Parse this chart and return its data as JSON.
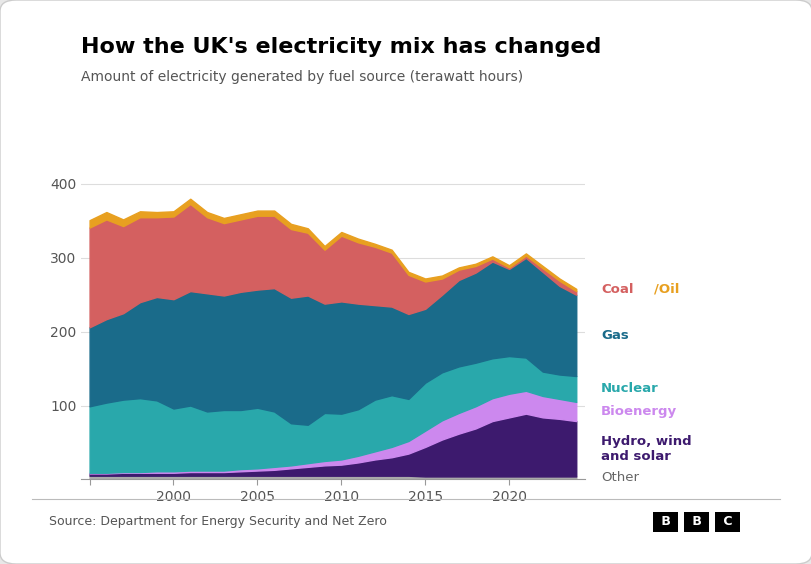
{
  "title": "How the UK's electricity mix has changed",
  "subtitle": "Amount of electricity generated by fuel source (terawatt hours)",
  "source": "Source: Department for Energy Security and Net Zero",
  "years": [
    1995,
    1996,
    1997,
    1998,
    1999,
    2000,
    2001,
    2002,
    2003,
    2004,
    2005,
    2006,
    2007,
    2008,
    2009,
    2010,
    2011,
    2012,
    2013,
    2014,
    2015,
    2016,
    2017,
    2018,
    2019,
    2020,
    2021,
    2022,
    2023,
    2024
  ],
  "other": [
    5,
    5,
    5,
    5,
    5,
    5,
    5,
    5,
    5,
    5,
    5,
    5,
    5,
    5,
    5,
    5,
    5,
    5,
    5,
    5,
    4,
    4,
    4,
    4,
    4,
    4,
    4,
    4,
    4,
    4
  ],
  "hydro_wind_solar": [
    3,
    3,
    4,
    4,
    4,
    4,
    5,
    5,
    5,
    6,
    7,
    8,
    10,
    12,
    14,
    15,
    18,
    22,
    25,
    30,
    40,
    50,
    58,
    65,
    75,
    80,
    85,
    80,
    78,
    75
  ],
  "bioenergy": [
    1,
    1,
    1,
    1,
    2,
    2,
    2,
    2,
    2,
    3,
    3,
    4,
    4,
    5,
    6,
    7,
    9,
    11,
    14,
    17,
    22,
    26,
    28,
    30,
    31,
    32,
    31,
    29,
    27,
    26
  ],
  "nuclear": [
    90,
    95,
    98,
    100,
    96,
    85,
    88,
    80,
    82,
    80,
    82,
    75,
    57,
    52,
    65,
    62,
    63,
    70,
    70,
    57,
    65,
    65,
    63,
    59,
    54,
    51,
    45,
    33,
    33,
    35
  ],
  "gas": [
    107,
    113,
    117,
    130,
    140,
    148,
    155,
    160,
    155,
    160,
    160,
    167,
    170,
    175,
    148,
    152,
    143,
    128,
    120,
    115,
    100,
    105,
    117,
    122,
    131,
    118,
    135,
    135,
    120,
    110
  ],
  "coal": [
    135,
    135,
    118,
    115,
    108,
    112,
    118,
    103,
    98,
    98,
    100,
    98,
    93,
    85,
    73,
    89,
    83,
    79,
    73,
    53,
    37,
    22,
    14,
    9,
    4,
    2,
    3,
    5,
    7,
    5
  ],
  "oil": [
    10,
    10,
    9,
    8,
    7,
    7,
    7,
    7,
    7,
    7,
    7,
    7,
    7,
    6,
    5,
    5,
    5,
    4,
    4,
    4,
    4,
    4,
    3,
    3,
    3,
    3,
    3,
    3,
    3,
    3
  ],
  "colors": {
    "other": "#aaaaaa",
    "hydro_wind_solar": "#3d1a6e",
    "bioenergy": "#cc88ee",
    "nuclear": "#29a8ab",
    "gas": "#1a6b8a",
    "coal": "#d46060",
    "oil": "#e8a020"
  },
  "ylim": [
    0,
    420
  ],
  "yticks": [
    0,
    100,
    200,
    300,
    400
  ],
  "background_color": "#ffffff",
  "card_background": "#f7f7f7"
}
